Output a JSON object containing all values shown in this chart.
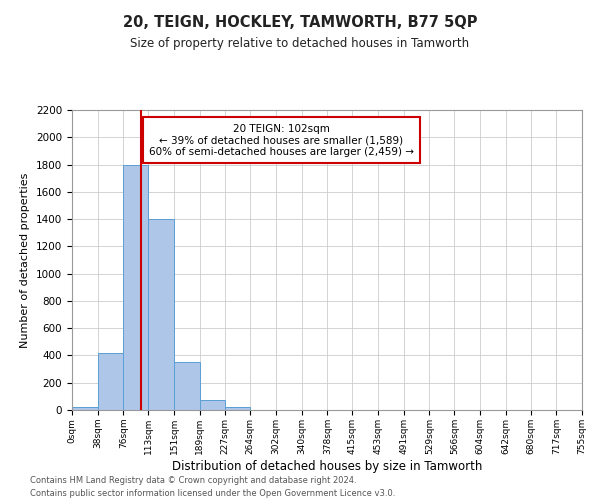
{
  "title": "20, TEIGN, HOCKLEY, TAMWORTH, B77 5QP",
  "subtitle": "Size of property relative to detached houses in Tamworth",
  "xlabel": "Distribution of detached houses by size in Tamworth",
  "ylabel": "Number of detached properties",
  "bar_color": "#aec6e8",
  "bar_edge_color": "#5a9fd4",
  "background_color": "#ffffff",
  "grid_color": "#cccccc",
  "annotation_box_color": "#cc0000",
  "vline_color": "#cc0000",
  "vline_x": 102,
  "bin_edges": [
    0,
    38,
    76,
    113,
    151,
    189,
    227,
    264,
    302,
    340,
    378,
    415,
    453,
    491,
    529,
    566,
    604,
    642,
    680,
    717,
    755
  ],
  "bar_heights": [
    20,
    420,
    1800,
    1400,
    350,
    75,
    25,
    0,
    0,
    0,
    0,
    0,
    0,
    0,
    0,
    0,
    0,
    0,
    0,
    0
  ],
  "tick_labels": [
    "0sqm",
    "38sqm",
    "76sqm",
    "113sqm",
    "151sqm",
    "189sqm",
    "227sqm",
    "264sqm",
    "302sqm",
    "340sqm",
    "378sqm",
    "415sqm",
    "453sqm",
    "491sqm",
    "529sqm",
    "566sqm",
    "604sqm",
    "642sqm",
    "680sqm",
    "717sqm",
    "755sqm"
  ],
  "ylim": [
    0,
    2200
  ],
  "xlim": [
    0,
    755
  ],
  "annotation_title": "20 TEIGN: 102sqm",
  "annotation_line1": "← 39% of detached houses are smaller (1,589)",
  "annotation_line2": "60% of semi-detached houses are larger (2,459) →",
  "footnote1": "Contains HM Land Registry data © Crown copyright and database right 2024.",
  "footnote2": "Contains public sector information licensed under the Open Government Licence v3.0."
}
